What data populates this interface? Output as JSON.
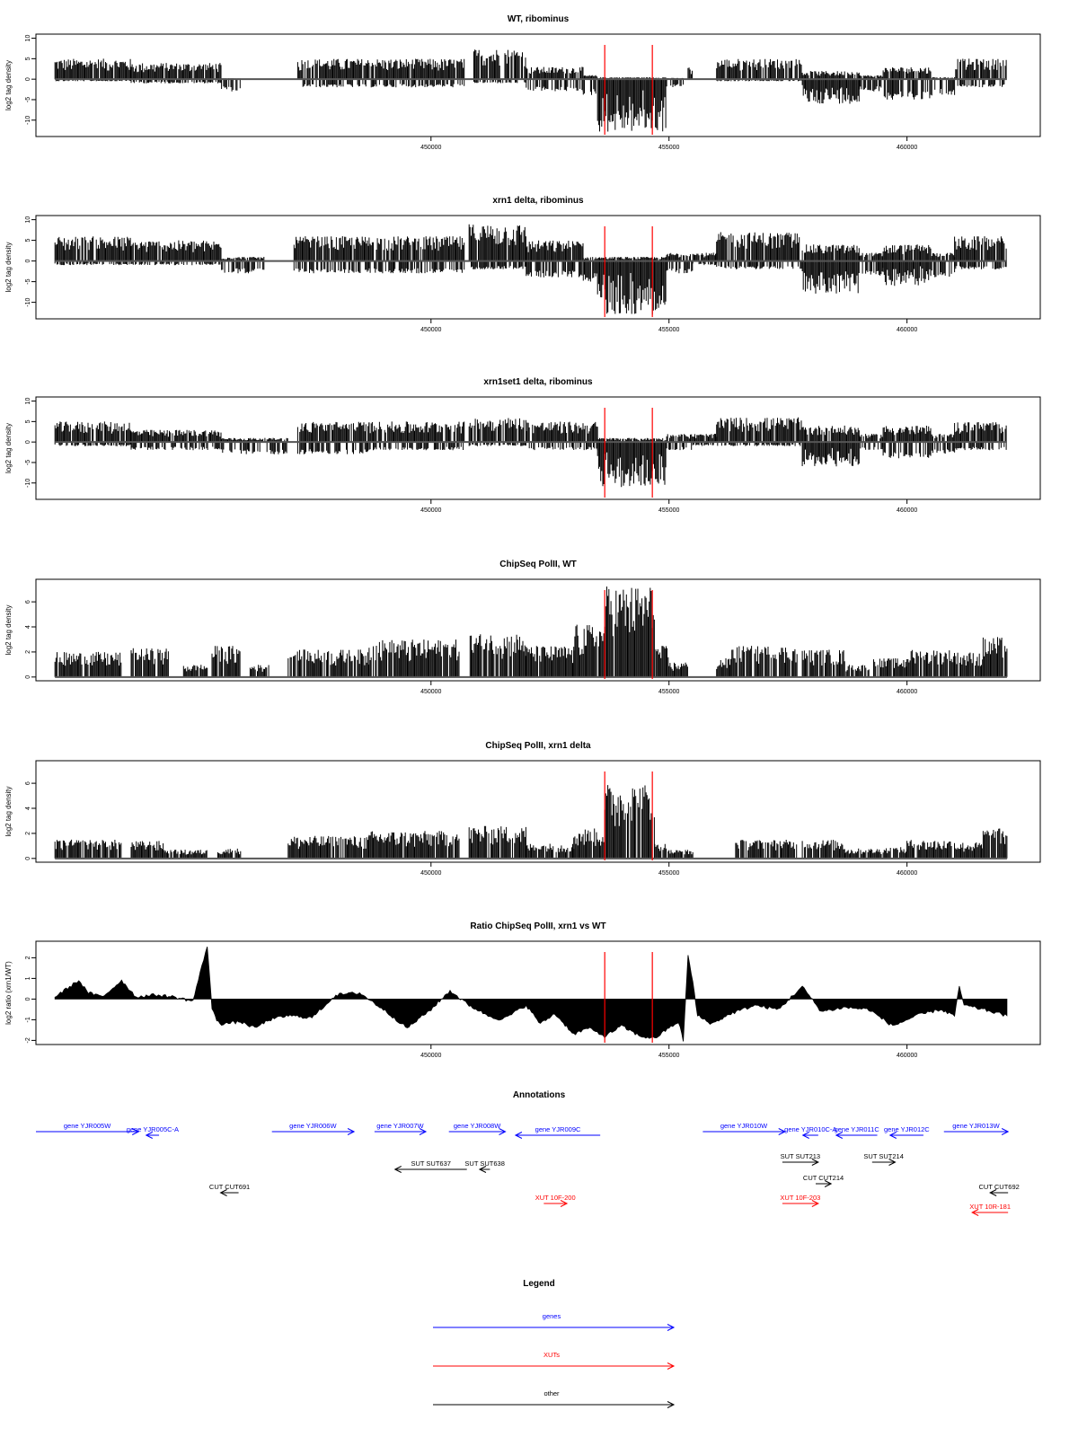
{
  "chart_data": [
    {
      "type": "bar",
      "title": "WT, ribominus",
      "ylabel": "log2 tag density",
      "yticks": [
        10,
        5,
        0,
        -5,
        -10
      ],
      "ylim": [
        -14,
        11
      ],
      "xlim": [
        441700,
        462800
      ],
      "xticks": [
        450000,
        455000,
        460000
      ],
      "xtick_labels": [
        "450000",
        "455000",
        "460000"
      ],
      "markers": [
        453650,
        454650
      ],
      "segments": [
        {
          "x0": 442100,
          "x1": 443700,
          "pos": 5,
          "neg": 0.5
        },
        {
          "x0": 443700,
          "x1": 445600,
          "pos": 4,
          "neg": 1
        },
        {
          "x0": 445600,
          "x1": 446000,
          "pos": 0.2,
          "neg": 3
        },
        {
          "x0": 447200,
          "x1": 448700,
          "pos": 5,
          "neg": 2
        },
        {
          "x0": 448700,
          "x1": 450700,
          "pos": 5,
          "neg": 2
        },
        {
          "x0": 450900,
          "x1": 452000,
          "pos": 7.5,
          "neg": 1
        },
        {
          "x0": 452000,
          "x1": 453200,
          "pos": 3,
          "neg": 3
        },
        {
          "x0": 453200,
          "x1": 453500,
          "pos": 1,
          "neg": 4
        },
        {
          "x0": 453500,
          "x1": 454950,
          "pos": 0.5,
          "neg": 13
        },
        {
          "x0": 454950,
          "x1": 455300,
          "pos": 0.3,
          "neg": 2
        },
        {
          "x0": 455400,
          "x1": 455500,
          "pos": 3,
          "neg": 0
        },
        {
          "x0": 456000,
          "x1": 457800,
          "pos": 5,
          "neg": 0.5
        },
        {
          "x0": 457800,
          "x1": 459000,
          "pos": 2,
          "neg": 6
        },
        {
          "x0": 459000,
          "x1": 459500,
          "pos": 1,
          "neg": 3
        },
        {
          "x0": 459500,
          "x1": 460500,
          "pos": 3,
          "neg": 5
        },
        {
          "x0": 460500,
          "x1": 461000,
          "pos": 0.5,
          "neg": 4
        },
        {
          "x0": 461000,
          "x1": 462100,
          "pos": 5,
          "neg": 2
        }
      ]
    },
    {
      "type": "bar",
      "title": "xrn1 delta, ribominus",
      "ylabel": "log2 tag density",
      "yticks": [
        10,
        5,
        0,
        -5,
        -10
      ],
      "ylim": [
        -14,
        11
      ],
      "xlim": [
        441700,
        462800
      ],
      "xticks": [
        450000,
        455000,
        460000
      ],
      "xtick_labels": [
        "450000",
        "455000",
        "460000"
      ],
      "markers": [
        453650,
        454650
      ],
      "segments": [
        {
          "x0": 442100,
          "x1": 443700,
          "pos": 6,
          "neg": 1
        },
        {
          "x0": 443700,
          "x1": 445600,
          "pos": 5,
          "neg": 1
        },
        {
          "x0": 445600,
          "x1": 446500,
          "pos": 1,
          "neg": 3
        },
        {
          "x0": 447100,
          "x1": 448700,
          "pos": 6,
          "neg": 3
        },
        {
          "x0": 448700,
          "x1": 450700,
          "pos": 6,
          "neg": 3
        },
        {
          "x0": 450800,
          "x1": 452000,
          "pos": 9,
          "neg": 2
        },
        {
          "x0": 452000,
          "x1": 453200,
          "pos": 5,
          "neg": 4
        },
        {
          "x0": 453200,
          "x1": 453500,
          "pos": 1,
          "neg": 5
        },
        {
          "x0": 453500,
          "x1": 454950,
          "pos": 1,
          "neg": 13
        },
        {
          "x0": 454950,
          "x1": 455500,
          "pos": 2,
          "neg": 3
        },
        {
          "x0": 455500,
          "x1": 456000,
          "pos": 2,
          "neg": 1
        },
        {
          "x0": 456000,
          "x1": 457800,
          "pos": 7,
          "neg": 2
        },
        {
          "x0": 457800,
          "x1": 459000,
          "pos": 4,
          "neg": 8
        },
        {
          "x0": 459000,
          "x1": 459500,
          "pos": 2,
          "neg": 4
        },
        {
          "x0": 459500,
          "x1": 460500,
          "pos": 4,
          "neg": 6
        },
        {
          "x0": 460500,
          "x1": 461000,
          "pos": 2,
          "neg": 4
        },
        {
          "x0": 461000,
          "x1": 462100,
          "pos": 6,
          "neg": 2
        }
      ]
    },
    {
      "type": "bar",
      "title": "xrn1set1 delta, ribominus",
      "ylabel": "log2 tag density",
      "yticks": [
        10,
        5,
        0,
        -5,
        -10
      ],
      "ylim": [
        -14,
        11
      ],
      "xlim": [
        441700,
        462800
      ],
      "xticks": [
        450000,
        455000,
        460000
      ],
      "xtick_labels": [
        "450000",
        "455000",
        "460000"
      ],
      "markers": [
        453650,
        454650
      ],
      "segments": [
        {
          "x0": 442100,
          "x1": 443700,
          "pos": 5,
          "neg": 1
        },
        {
          "x0": 443700,
          "x1": 445600,
          "pos": 3,
          "neg": 2
        },
        {
          "x0": 445600,
          "x1": 447000,
          "pos": 1,
          "neg": 3
        },
        {
          "x0": 447200,
          "x1": 448700,
          "pos": 5,
          "neg": 3
        },
        {
          "x0": 448700,
          "x1": 450700,
          "pos": 5,
          "neg": 2
        },
        {
          "x0": 450800,
          "x1": 452000,
          "pos": 6,
          "neg": 1
        },
        {
          "x0": 452000,
          "x1": 453500,
          "pos": 5,
          "neg": 2
        },
        {
          "x0": 453500,
          "x1": 454950,
          "pos": 1,
          "neg": 11
        },
        {
          "x0": 454950,
          "x1": 455500,
          "pos": 2,
          "neg": 2
        },
        {
          "x0": 455500,
          "x1": 456000,
          "pos": 2,
          "neg": 1
        },
        {
          "x0": 456000,
          "x1": 457800,
          "pos": 6,
          "neg": 1
        },
        {
          "x0": 457800,
          "x1": 459000,
          "pos": 4,
          "neg": 6
        },
        {
          "x0": 459000,
          "x1": 459500,
          "pos": 2,
          "neg": 2
        },
        {
          "x0": 459500,
          "x1": 460500,
          "pos": 4,
          "neg": 4
        },
        {
          "x0": 460500,
          "x1": 461000,
          "pos": 2,
          "neg": 3
        },
        {
          "x0": 461000,
          "x1": 462100,
          "pos": 5,
          "neg": 2
        }
      ]
    },
    {
      "type": "bar",
      "title": "ChipSeq PolII, WT",
      "ylabel": "log2 tag density",
      "yticks": [
        0,
        2,
        4,
        6
      ],
      "ylim": [
        -0.3,
        7.8
      ],
      "xlim": [
        441700,
        462800
      ],
      "xticks": [
        450000,
        455000,
        460000
      ],
      "xtick_labels": [
        "450000",
        "455000",
        "460000"
      ],
      "markers": [
        453650,
        454650
      ],
      "segments": [
        {
          "x0": 442100,
          "x1": 443500,
          "pos": 2
        },
        {
          "x0": 443700,
          "x1": 444500,
          "pos": 2.3
        },
        {
          "x0": 444800,
          "x1": 445300,
          "pos": 1
        },
        {
          "x0": 445400,
          "x1": 446000,
          "pos": 2.5
        },
        {
          "x0": 446200,
          "x1": 446600,
          "pos": 1
        },
        {
          "x0": 447000,
          "x1": 448700,
          "pos": 2.2
        },
        {
          "x0": 448700,
          "x1": 450600,
          "pos": 3
        },
        {
          "x0": 450800,
          "x1": 452000,
          "pos": 3.5
        },
        {
          "x0": 452000,
          "x1": 453000,
          "pos": 2.5
        },
        {
          "x0": 453000,
          "x1": 453650,
          "pos": 4.2
        },
        {
          "x0": 453650,
          "x1": 454700,
          "pos": 7.3
        },
        {
          "x0": 454700,
          "x1": 455000,
          "pos": 2.5
        },
        {
          "x0": 455000,
          "x1": 455400,
          "pos": 1.2
        },
        {
          "x0": 456000,
          "x1": 456300,
          "pos": 1.5
        },
        {
          "x0": 456300,
          "x1": 457700,
          "pos": 2.5
        },
        {
          "x0": 457800,
          "x1": 458700,
          "pos": 2.2
        },
        {
          "x0": 458700,
          "x1": 459200,
          "pos": 1
        },
        {
          "x0": 459300,
          "x1": 460000,
          "pos": 1.5
        },
        {
          "x0": 460000,
          "x1": 461000,
          "pos": 2.2
        },
        {
          "x0": 461000,
          "x1": 461600,
          "pos": 2
        },
        {
          "x0": 461600,
          "x1": 462100,
          "pos": 3.2
        }
      ]
    },
    {
      "type": "bar",
      "title": "ChipSeq PolII, xrn1 delta",
      "ylabel": "log2 tag density",
      "yticks": [
        0,
        2,
        4,
        6
      ],
      "ylim": [
        -0.3,
        7.8
      ],
      "xlim": [
        441700,
        462800
      ],
      "xticks": [
        450000,
        455000,
        460000
      ],
      "xtick_labels": [
        "450000",
        "455000",
        "460000"
      ],
      "markers": [
        453650,
        454650
      ],
      "segments": [
        {
          "x0": 442100,
          "x1": 443500,
          "pos": 1.5
        },
        {
          "x0": 443700,
          "x1": 444400,
          "pos": 1.4
        },
        {
          "x0": 444400,
          "x1": 445300,
          "pos": 0.7
        },
        {
          "x0": 445500,
          "x1": 446000,
          "pos": 0.8
        },
        {
          "x0": 447000,
          "x1": 448700,
          "pos": 1.8
        },
        {
          "x0": 448700,
          "x1": 450600,
          "pos": 2.2
        },
        {
          "x0": 450800,
          "x1": 452000,
          "pos": 2.6
        },
        {
          "x0": 452000,
          "x1": 453000,
          "pos": 1.2
        },
        {
          "x0": 453000,
          "x1": 453650,
          "pos": 2.4
        },
        {
          "x0": 453650,
          "x1": 454700,
          "pos": 6
        },
        {
          "x0": 454700,
          "x1": 455000,
          "pos": 1.2
        },
        {
          "x0": 455000,
          "x1": 455500,
          "pos": 0.7
        },
        {
          "x0": 456400,
          "x1": 457700,
          "pos": 1.5
        },
        {
          "x0": 457800,
          "x1": 458700,
          "pos": 1.5
        },
        {
          "x0": 458700,
          "x1": 459500,
          "pos": 0.8
        },
        {
          "x0": 459500,
          "x1": 460000,
          "pos": 0.9
        },
        {
          "x0": 460000,
          "x1": 461000,
          "pos": 1.5
        },
        {
          "x0": 461000,
          "x1": 461600,
          "pos": 1.3
        },
        {
          "x0": 461600,
          "x1": 462100,
          "pos": 2.4
        }
      ]
    },
    {
      "type": "area",
      "title": "Ratio ChipSeq PolII, xrn1 vs WT",
      "ylabel": "log2 ratio (xrn1/WT)",
      "yticks": [
        2,
        1,
        0,
        -1,
        -2
      ],
      "ylim": [
        -2.2,
        2.8
      ],
      "xlim": [
        441700,
        462800
      ],
      "xticks": [
        450000,
        455000,
        460000
      ],
      "xtick_labels": [
        "450000",
        "455000",
        "460000"
      ],
      "markers": [
        453650,
        454650
      ],
      "x": [
        442100,
        442600,
        442800,
        443100,
        443500,
        443800,
        444200,
        444600,
        445000,
        445300,
        445400,
        445500,
        445600,
        446000,
        446300,
        446600,
        447000,
        447500,
        448000,
        448500,
        449000,
        449500,
        450000,
        450400,
        450800,
        451200,
        451500,
        452000,
        452300,
        452600,
        453000,
        453300,
        453650,
        454000,
        454400,
        454700,
        455000,
        455200,
        455300,
        455400,
        455500,
        455600,
        455900,
        456300,
        456800,
        457300,
        457800,
        458200,
        458700,
        459200,
        459700,
        460200,
        460700,
        461000,
        461100,
        461200,
        461600,
        462100
      ],
      "y": [
        0.1,
        0.9,
        0.3,
        0.1,
        0.9,
        0.1,
        0.2,
        0.1,
        -0.1,
        2.6,
        -0.5,
        -1.0,
        -1.2,
        -1.1,
        -1.4,
        -1.0,
        -0.8,
        -0.9,
        0.2,
        0.3,
        -0.5,
        -1.4,
        -0.5,
        0.4,
        -0.3,
        -0.8,
        -1.0,
        -0.3,
        -1.2,
        -0.7,
        -1.7,
        -1.4,
        -1.8,
        -1.3,
        -1.8,
        -1.9,
        -1.4,
        -1.1,
        -2.0,
        2.1,
        0.8,
        -0.8,
        -1.2,
        -0.7,
        -0.3,
        -0.5,
        0.6,
        -0.6,
        -0.4,
        -0.5,
        -1.3,
        -0.8,
        -0.5,
        -0.8,
        0.6,
        -0.3,
        -0.5,
        -0.8
      ]
    }
  ],
  "annotations": {
    "title": "Annotations",
    "features": [
      {
        "label": "gene YJR005W",
        "group": "genes",
        "x0": 441700,
        "x1": 443700,
        "strand": "+",
        "row": 0
      },
      {
        "label": "gene YJR005C-A",
        "group": "genes",
        "x0": 443850,
        "x1": 444100,
        "strand": "-",
        "row": 1
      },
      {
        "label": "gene YJR006W",
        "group": "genes",
        "x0": 446300,
        "x1": 447900,
        "strand": "+",
        "row": 0
      },
      {
        "label": "gene YJR007W",
        "group": "genes",
        "x0": 448300,
        "x1": 449300,
        "strand": "+",
        "row": 0
      },
      {
        "label": "gene YJR008W",
        "group": "genes",
        "x0": 449750,
        "x1": 450850,
        "strand": "+",
        "row": 0
      },
      {
        "label": "gene YJR009C",
        "group": "genes",
        "x0": 451050,
        "x1": 452700,
        "strand": "-",
        "row": 1
      },
      {
        "label": "gene YJR010W",
        "group": "genes",
        "x0": 454700,
        "x1": 456300,
        "strand": "+",
        "row": 0
      },
      {
        "label": "gene YJR010C-A",
        "group": "genes",
        "x0": 456650,
        "x1": 456950,
        "strand": "-",
        "row": 1
      },
      {
        "label": "gene YJR011C",
        "group": "genes",
        "x0": 457300,
        "x1": 458100,
        "strand": "-",
        "row": 1
      },
      {
        "label": "gene YJR012C",
        "group": "genes",
        "x0": 458350,
        "x1": 459000,
        "strand": "-",
        "row": 1
      },
      {
        "label": "gene YJR013W",
        "group": "genes",
        "x0": 459400,
        "x1": 460650,
        "strand": "+",
        "row": 0
      },
      {
        "label": "SUT SUT637",
        "group": "other",
        "x0": 448700,
        "x1": 450100,
        "strand": "-",
        "row": 3
      },
      {
        "label": "SUT SUT638",
        "group": "other",
        "x0": 450350,
        "x1": 450550,
        "strand": "-",
        "row": 3
      },
      {
        "label": "SUT SUT213",
        "group": "other",
        "x0": 456250,
        "x1": 456950,
        "strand": "+",
        "row": 2
      },
      {
        "label": "SUT SUT214",
        "group": "other",
        "x0": 458000,
        "x1": 458450,
        "strand": "+",
        "row": 2
      },
      {
        "label": "CUT CUT214",
        "group": "other",
        "x0": 456900,
        "x1": 457200,
        "strand": "+",
        "row": 4
      },
      {
        "label": "CUT CUT691",
        "group": "other",
        "x0": 445300,
        "x1": 445650,
        "strand": "-",
        "row": 5
      },
      {
        "label": "CUT CUT692",
        "group": "other",
        "x0": 460300,
        "x1": 460650,
        "strand": "-",
        "row": 5
      },
      {
        "label": "XUT 10F-200",
        "group": "XUTs",
        "x0": 451600,
        "x1": 452050,
        "strand": "+",
        "row": 6
      },
      {
        "label": "XUT 10F-203",
        "group": "XUTs",
        "x0": 456250,
        "x1": 456950,
        "strand": "+",
        "row": 6
      },
      {
        "label": "XUT 10R-181",
        "group": "XUTs",
        "x0": 459950,
        "x1": 460650,
        "strand": "-",
        "row": 7
      }
    ]
  },
  "legend": {
    "title": "Legend",
    "items": [
      {
        "label": "genes",
        "color": "#0000ff"
      },
      {
        "label": "XUTs",
        "color": "#ff0000"
      },
      {
        "label": "other",
        "color": "#000000"
      }
    ]
  },
  "colors": {
    "genes": "#0000ff",
    "XUTs": "#ff0000",
    "other": "#000000",
    "marker": "#ff0000",
    "bars": "#000000"
  }
}
